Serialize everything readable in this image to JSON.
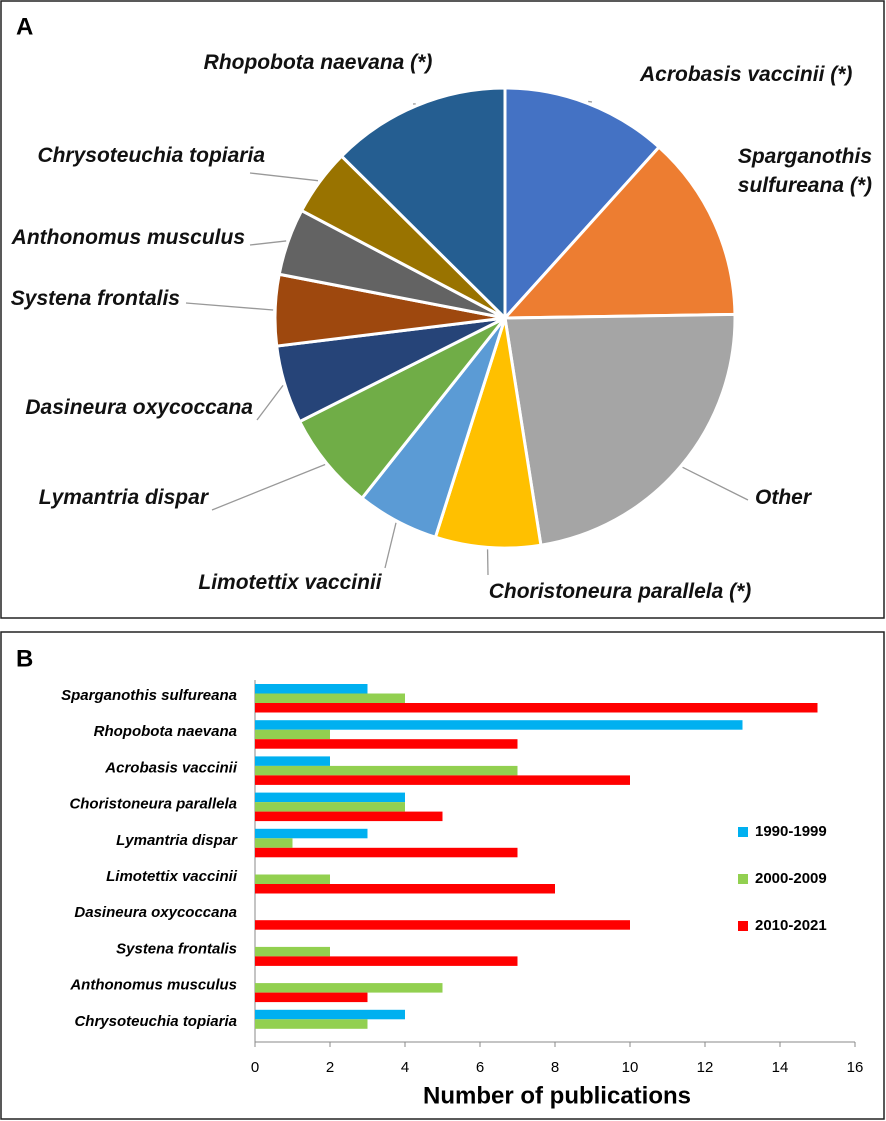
{
  "chart_data": [
    {
      "type": "pie",
      "panel_label": "A",
      "categories": [
        "Acrobasis vaccinii (*)",
        "Sparganothis sulfureana (*)",
        "Other",
        "Choristoneura parallela (*)",
        "Limotettix vaccinii",
        "Lymantria dispar",
        "Dasineura oxycoccana",
        "Systena frontalis",
        "Anthonomus musculus",
        "Chrysoteuchia topiaria",
        "Rhopobota naevana (*)"
      ],
      "values": [
        11.7,
        13.1,
        22.8,
        7.4,
        5.8,
        6.9,
        5.5,
        5,
        4.7,
        4.7,
        12.6
      ],
      "colors": [
        "#4472c4",
        "#ed7d31",
        "#a5a5a5",
        "#ffc000",
        "#5b9bd5",
        "#70ad47",
        "#264478",
        "#9e480e",
        "#636363",
        "#997300",
        "#255e91"
      ]
    },
    {
      "type": "hbar",
      "panel_label": "B",
      "categories": [
        "Sparganothis sulfureana",
        "Rhopobota naevana",
        "Acrobasis vaccinii",
        "Choristoneura parallela",
        "Lymantria dispar",
        "Limotettix vaccinii",
        "Dasineura oxycoccana",
        "Systena frontalis",
        "Anthonomus musculus",
        "Chrysoteuchia topiaria"
      ],
      "series": [
        {
          "name": "1990-1999",
          "color": "#00b0f0",
          "values": [
            3,
            13,
            2,
            4,
            3,
            0,
            0,
            0,
            0,
            4
          ]
        },
        {
          "name": "2000-2009",
          "color": "#92d050",
          "values": [
            4,
            2,
            7,
            4,
            1,
            2,
            0,
            2,
            5,
            3
          ]
        },
        {
          "name": "2010-2021",
          "color": "#ff0000",
          "values": [
            15,
            7,
            10,
            5,
            7,
            8,
            10,
            7,
            3,
            0
          ]
        }
      ],
      "xlabel": "Number of publications",
      "xlim": [
        0,
        16
      ],
      "xticks": [
        0,
        2,
        4,
        6,
        8,
        10,
        12,
        14,
        16
      ],
      "legend": "right"
    }
  ]
}
